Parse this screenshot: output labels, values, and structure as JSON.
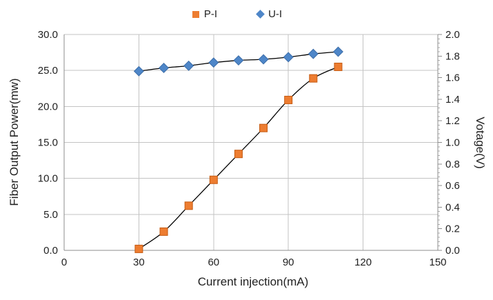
{
  "chart_data": {
    "type": "line",
    "x": [
      30,
      40,
      50,
      60,
      70,
      80,
      90,
      100,
      110
    ],
    "series": [
      {
        "name": "P-I",
        "axis": "left",
        "marker": "square",
        "color": "#ED7D31",
        "edge_color": "#C55A11",
        "values": [
          0.2,
          2.6,
          6.2,
          9.8,
          13.4,
          17.0,
          20.9,
          23.9,
          25.5
        ]
      },
      {
        "name": "U-I",
        "axis": "right",
        "marker": "diamond",
        "color": "#4E86C8",
        "edge_color": "#3C6DA8",
        "values": [
          1.66,
          1.69,
          1.71,
          1.74,
          1.76,
          1.77,
          1.79,
          1.82,
          1.84
        ]
      }
    ],
    "title": "",
    "xlabel": "Current injection(mA)",
    "ylabel_left": "Fiber Output Power(mw)",
    "ylabel_right": "Votage(V)",
    "xlim": [
      0,
      150
    ],
    "ylim_left": [
      0,
      30
    ],
    "ylim_right": [
      0,
      2
    ],
    "x_ticks": [
      "0",
      "30",
      "60",
      "90",
      "120",
      "150"
    ],
    "left_ticks": [
      "0.0",
      "5.0",
      "10.0",
      "15.0",
      "20.0",
      "25.0",
      "30.0"
    ],
    "right_ticks": [
      "0.0",
      "0.2",
      "0.4",
      "0.6",
      "0.8",
      "1.0",
      "1.2",
      "1.4",
      "1.6",
      "1.8",
      "2.0"
    ],
    "right_minor_tick_step": 0.04,
    "grid": true,
    "legend_position": "top",
    "line_color": "#000000",
    "colors": {
      "grid": "#C3C3C3",
      "axis": "#8C8C8C",
      "minor_tick": "#ABABAB",
      "text": "#1F1F1F",
      "background": "#FFFFFF"
    }
  }
}
